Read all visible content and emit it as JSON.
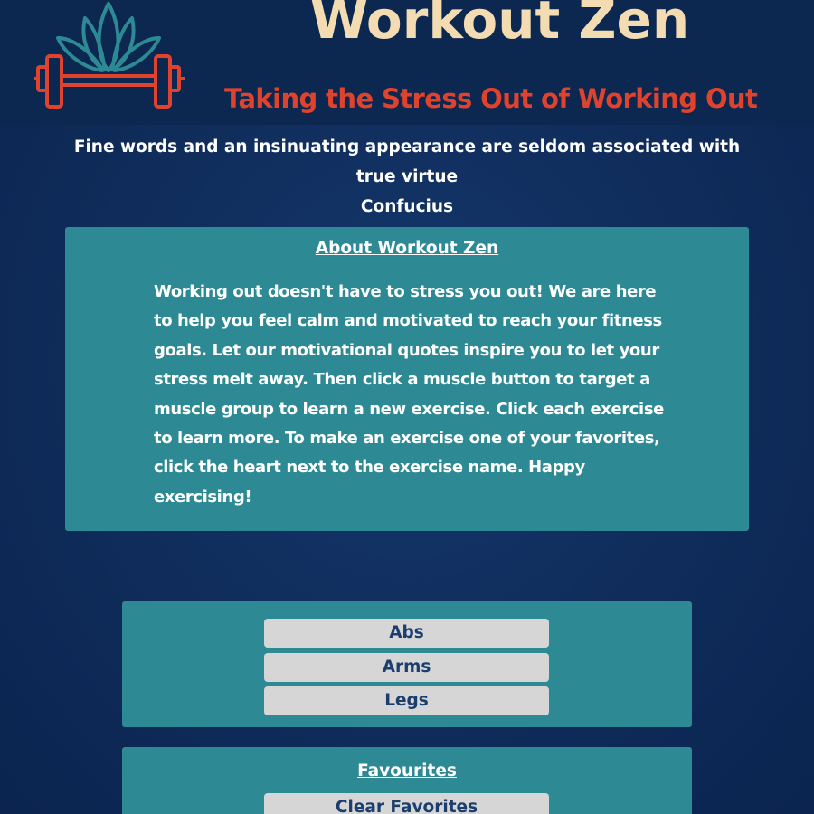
{
  "header": {
    "title": "Workout Zen",
    "tagline": "Taking the Stress Out of Working Out",
    "logo_icon": "lotus-dumbbell-icon"
  },
  "quote": {
    "text": "Fine words and an insinuating appearance are seldom associated with true virtue",
    "author": "Confucius"
  },
  "about": {
    "title": "About Workout Zen",
    "body": "Working out doesn't have to stress you out! We are here to help you feel calm and motivated to reach your fitness goals. Let our motivational quotes inspire you to let your stress melt away. Then click a muscle button to target a muscle group to learn a new exercise. Click each exercise to learn more. To make an exercise one of your favorites, click the heart next to the exercise name. Happy exercising!"
  },
  "muscles": {
    "buttons": [
      "Abs",
      "Arms",
      "Legs"
    ]
  },
  "favourites": {
    "title": "Favourites",
    "clear_label": "Clear Favorites"
  },
  "colors": {
    "background": "#0f2c5a",
    "title": "#f3dcb2",
    "tagline": "#e0432d",
    "panel": "#2d8a94",
    "button": "#d6d6d6",
    "button_text": "#1c3e6e"
  }
}
